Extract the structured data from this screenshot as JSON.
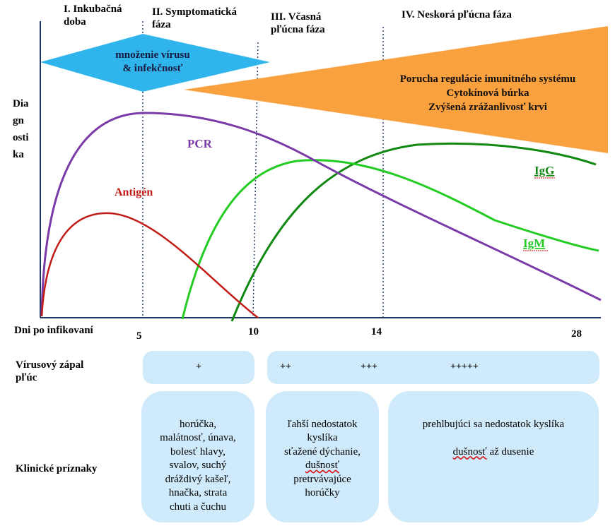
{
  "phases": [
    {
      "label": "I. Inkubačná\ndoba"
    },
    {
      "label": "II. Symptomatická\nfáza"
    },
    {
      "label": "III. Včasná\npľúcna fáza"
    },
    {
      "label": "IV. Neskorá pľúcna fáza"
    }
  ],
  "y_axis_label": "Dia\ngn\nosti\nka",
  "x_axis_label": "Dni po infikovaní",
  "x_ticks": [
    "5",
    "10",
    "14",
    "28"
  ],
  "virus_shape": {
    "line1": "množenie vírusu",
    "line2": "& infekčnosť",
    "color": "#2fb5ec"
  },
  "immune_shape": {
    "line1": "Porucha regulácie imunitného systému",
    "line2": "Cytokínová búrka",
    "line3": "Zvýšená zrážanlivosť krvi",
    "color": "#f9a03f"
  },
  "curves": {
    "pcr": {
      "label": "PCR",
      "color": "#7a3aa8"
    },
    "antigen": {
      "label": "Antigén",
      "color": "#c11b17"
    },
    "igm": {
      "label": "IgM",
      "color": "#22cc22"
    },
    "igg": {
      "label": "IgG",
      "color": "#118811"
    }
  },
  "pneumonia": {
    "label": "Vírusový zápal\npľúc",
    "severity": [
      "+",
      "++",
      "+++",
      "+++++"
    ]
  },
  "clinical": {
    "label": "Klinické príznaky",
    "box1": "horúčka,\nmalátnosť, únava,\nbolesť hlavy,\nsvalov, suchý\ndráždivý kašeľ,\nhnačka, strata\nchuti a čuchu",
    "box2_pre": "ľahší nedostatok\nkyslíka\nsťažené dýchanie,\n",
    "box2_wavy": "dušnosť",
    "box2_post": "\npretrvávajúce\nhorúčky",
    "box3_line1": "prehlbujúci sa nedostatok kyslíka",
    "box3_wavy": "dušnosť",
    "box3_rest": " až dusenie"
  }
}
